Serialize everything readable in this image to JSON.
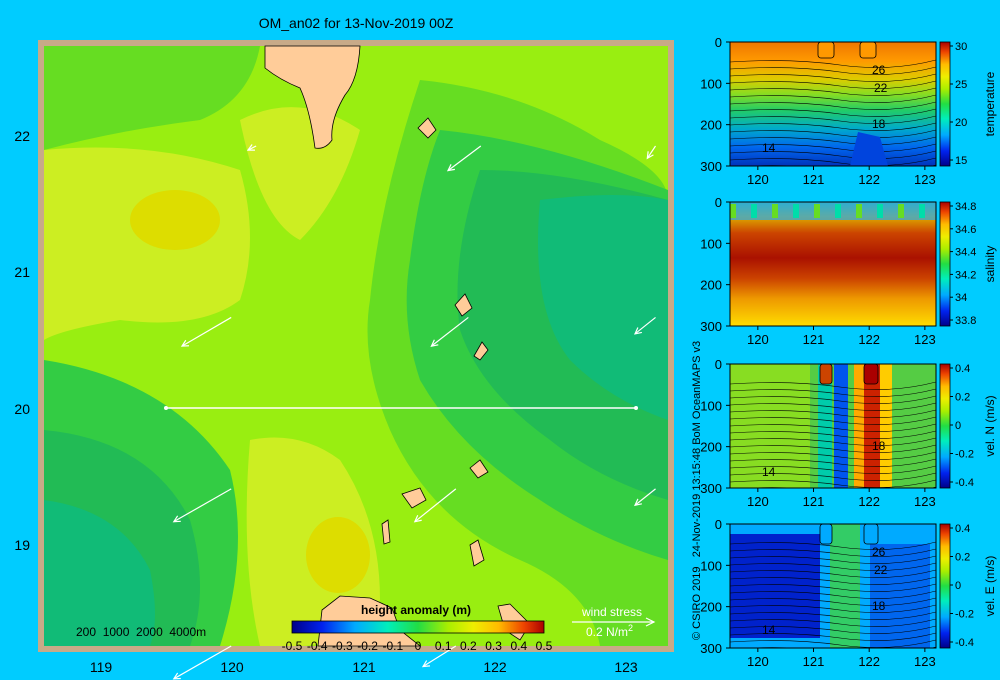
{
  "title": "OM_an02 for 13-Nov-2019 00Z",
  "credit": "© CSIRO 2019   24-Nov-2019 13:15:48 BoM OceanMAPS v3",
  "map": {
    "x_ticks": [
      "119",
      "120",
      "121",
      "122",
      "123"
    ],
    "y_ticks": [
      "22",
      "21",
      "20",
      "19"
    ],
    "bathy_label": "200  1000  2000  4000m",
    "colorbar_title": "height anomaly  (m)",
    "colorbar_ticks": [
      "-0.5",
      "-0.4",
      "-0.3",
      "-0.2",
      "-0.1",
      "0",
      "0.1",
      "0.2",
      "0.3",
      "0.4",
      "0.5"
    ],
    "wind_stress_title": "wind stress",
    "wind_stress_value": "0.2 N/m",
    "wind_stress_unit_sup": "2",
    "section_line": {
      "lat": 20.0,
      "lon_start": 119.5,
      "lon_end": 123.1
    }
  },
  "panels": [
    {
      "label": "temperature",
      "cbar_ticks": [
        "30",
        "25",
        "20",
        "15"
      ],
      "x_ticks": [
        "120",
        "121",
        "122",
        "123"
      ],
      "y_ticks": [
        "0",
        "100",
        "200",
        "300"
      ],
      "contour_labels": [
        "26",
        "22",
        "18",
        "14"
      ]
    },
    {
      "label": "salinity",
      "cbar_ticks": [
        "34.8",
        "34.6",
        "34.4",
        "34.2",
        "34",
        "33.8"
      ],
      "x_ticks": [
        "120",
        "121",
        "122",
        "123"
      ],
      "y_ticks": [
        "0",
        "100",
        "200",
        "300"
      ],
      "contour_labels": []
    },
    {
      "label": "vel. N  (m/s)",
      "cbar_ticks": [
        "0.4",
        "0.2",
        "0",
        "-0.2",
        "-0.4"
      ],
      "x_ticks": [
        "120",
        "121",
        "122",
        "123"
      ],
      "y_ticks": [
        "0",
        "100",
        "200",
        "300"
      ],
      "contour_labels": [
        "18",
        "14"
      ]
    },
    {
      "label": "vel. E  (m/s)",
      "cbar_ticks": [
        "0.4",
        "0.2",
        "0",
        "-0.2",
        "-0.4"
      ],
      "x_ticks": [
        "120",
        "121",
        "122",
        "123"
      ],
      "y_ticks": [
        "0",
        "100",
        "200",
        "300"
      ],
      "contour_labels": [
        "26",
        "22",
        "18",
        "14"
      ]
    }
  ],
  "colors": {
    "background": "#00ccff",
    "land": "#ffcc99",
    "shelf": "#c8a888",
    "ssh_levels": [
      "#22bb55",
      "#33cc44",
      "#66dd22",
      "#99ee11",
      "#ccee22",
      "#dddd00"
    ]
  },
  "chart_data": [
    {
      "type": "heatmap",
      "title": "OM_an02 for 13-Nov-2019 00Z",
      "variable": "height anomaly (m)",
      "x_range": [
        118.5,
        123.5
      ],
      "y_range": [
        18.5,
        22.7
      ],
      "colorbar_range": [
        -0.5,
        0.5
      ],
      "highs": [
        {
          "lon": 119.7,
          "lat": 21.5,
          "value": 0.25
        },
        {
          "lon": 120.9,
          "lat": 18.9,
          "value": 0.25
        }
      ],
      "lows": [
        {
          "lon": 123.0,
          "lat": 20.8,
          "value": 0.05
        },
        {
          "lon": 118.9,
          "lat": 18.9,
          "value": 0.05
        }
      ],
      "wind_stress_vectors": [
        {
          "lon": 120.2,
          "lat": 22.0,
          "u": -0.02,
          "v": -0.01
        },
        {
          "lon": 122.0,
          "lat": 22.0,
          "u": -0.08,
          "v": -0.06
        },
        {
          "lon": 123.4,
          "lat": 22.0,
          "u": -0.02,
          "v": -0.03
        },
        {
          "lon": 120.0,
          "lat": 20.8,
          "u": -0.12,
          "v": -0.07
        },
        {
          "lon": 121.9,
          "lat": 20.8,
          "u": -0.09,
          "v": -0.07
        },
        {
          "lon": 123.4,
          "lat": 20.8,
          "u": -0.05,
          "v": -0.04
        },
        {
          "lon": 120.0,
          "lat": 19.6,
          "u": -0.14,
          "v": -0.08
        },
        {
          "lon": 121.8,
          "lat": 19.6,
          "u": -0.1,
          "v": -0.08
        },
        {
          "lon": 123.4,
          "lat": 19.6,
          "u": -0.05,
          "v": -0.04
        },
        {
          "lon": 120.0,
          "lat": 18.5,
          "u": -0.14,
          "v": -0.08
        },
        {
          "lon": 121.8,
          "lat": 18.5,
          "u": -0.08,
          "v": -0.05
        }
      ],
      "wind_stress_reference": 0.2
    },
    {
      "type": "heatmap",
      "variable": "temperature",
      "x_range": [
        119.5,
        123.2
      ],
      "depth_range": [
        0,
        300
      ],
      "colorbar_range": [
        12,
        30.5
      ],
      "contour_levels": [
        26,
        22,
        18,
        14
      ]
    },
    {
      "type": "heatmap",
      "variable": "salinity",
      "x_range": [
        119.5,
        123.2
      ],
      "depth_range": [
        0,
        300
      ],
      "colorbar_range": [
        33.7,
        34.9
      ]
    },
    {
      "type": "heatmap",
      "variable": "vel. N (m/s)",
      "x_range": [
        119.5,
        123.2
      ],
      "depth_range": [
        0,
        300
      ],
      "colorbar_range": [
        -0.45,
        0.45
      ]
    },
    {
      "type": "heatmap",
      "variable": "vel. E (m/s)",
      "x_range": [
        119.5,
        123.2
      ],
      "depth_range": [
        0,
        300
      ],
      "colorbar_range": [
        -0.45,
        0.45
      ]
    }
  ]
}
